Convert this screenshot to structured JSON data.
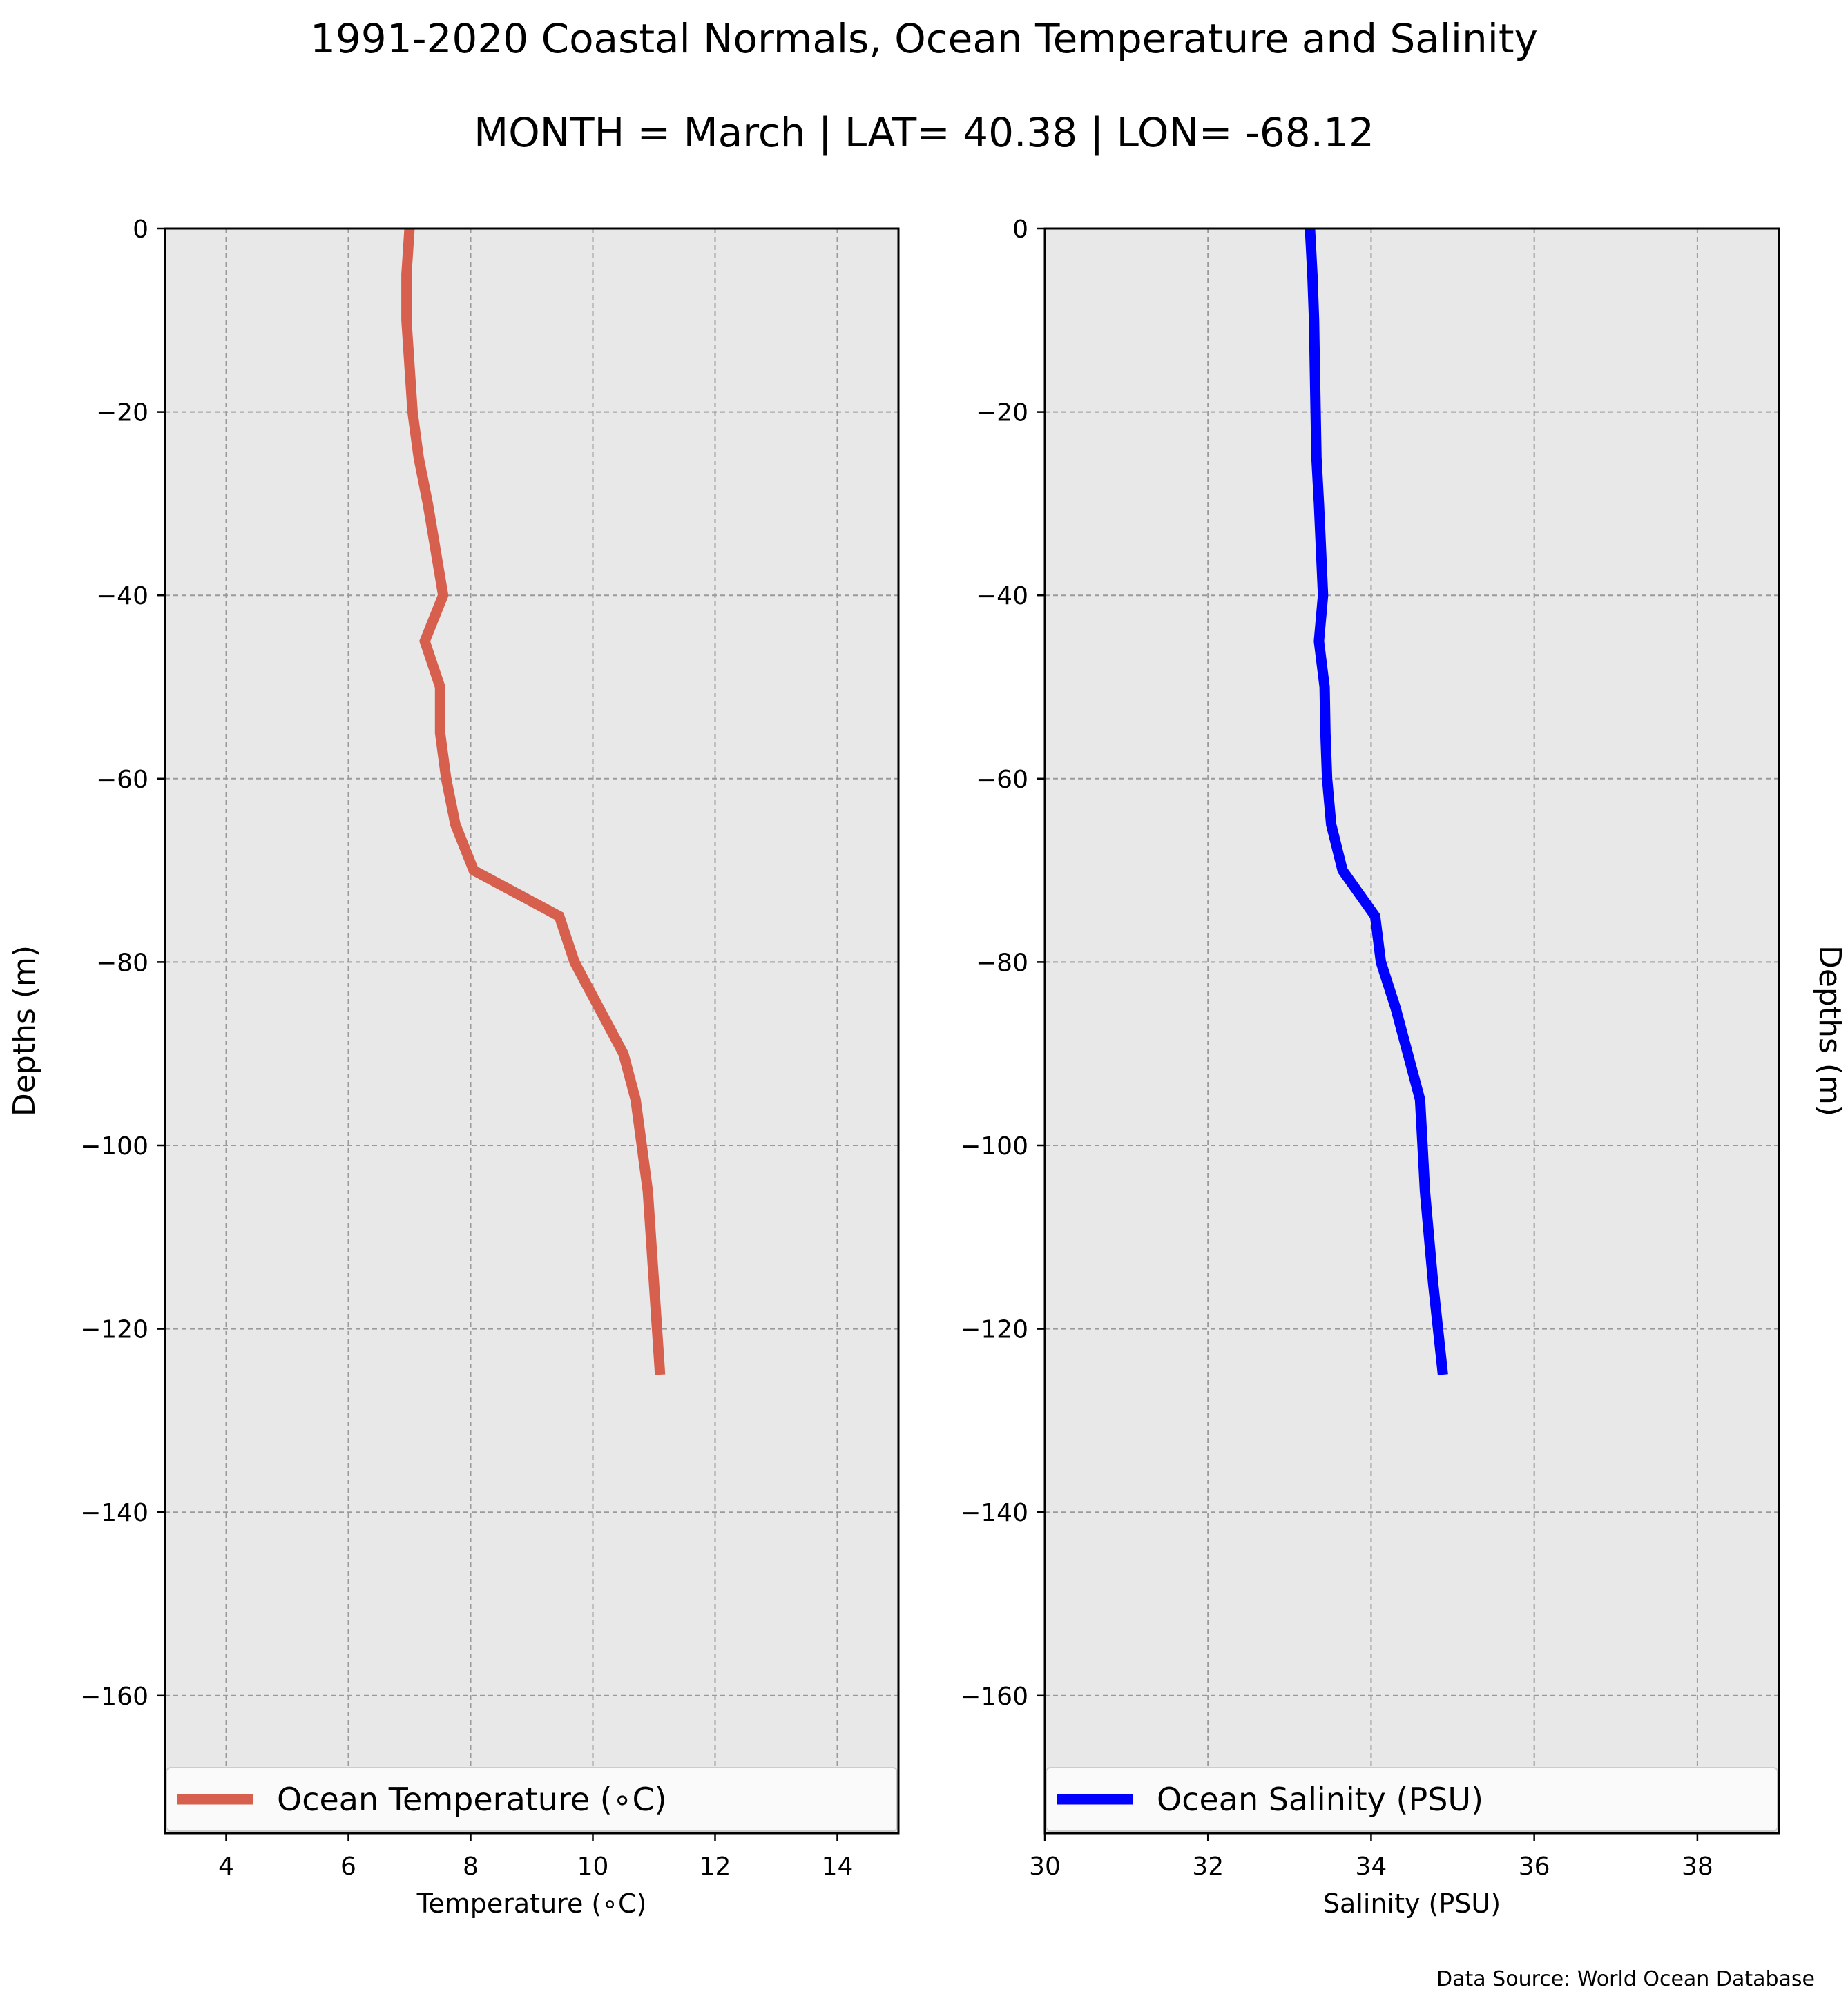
{
  "title": "1991-2020 Coastal Normals, Ocean Temperature and Salinity",
  "subtitle": "MONTH = March | LAT= 40.38 | LON= -68.12",
  "source": "Data Source: World Ocean Database",
  "chart_data": [
    {
      "type": "line",
      "orientation": "vertical-profile",
      "xlabel": "Temperature (∘C)",
      "ylabel": "Depths (m)",
      "xlim": [
        3,
        15
      ],
      "ylim": [
        -175,
        0
      ],
      "xticks": [
        4,
        6,
        8,
        10,
        12,
        14
      ],
      "yticks": [
        0,
        -20,
        -40,
        -60,
        -80,
        -100,
        -120,
        -140,
        -160
      ],
      "grid": true,
      "legend_position": "bottom",
      "color": "#d6604d",
      "series": [
        {
          "name": "Ocean Temperature (∘C)",
          "x": [
            7.0,
            6.95,
            6.95,
            7.0,
            7.05,
            7.15,
            7.3,
            7.55,
            7.25,
            7.5,
            7.5,
            7.6,
            7.75,
            8.05,
            9.45,
            9.7,
            10.1,
            10.5,
            10.7,
            10.8,
            10.9,
            11.0,
            11.1
          ],
          "y": [
            0,
            -5,
            -10,
            -15,
            -20,
            -25,
            -30,
            -40,
            -45,
            -50,
            -55,
            -60,
            -65,
            -70,
            -75,
            -80,
            -85,
            -90,
            -95,
            -100,
            -105,
            -115,
            -125
          ]
        }
      ]
    },
    {
      "type": "line",
      "orientation": "vertical-profile",
      "xlabel": "Salinity (PSU)",
      "ylabel": "Depths (m)",
      "xlim": [
        30,
        39
      ],
      "ylim": [
        -175,
        0
      ],
      "xticks": [
        30,
        32,
        34,
        36,
        38
      ],
      "yticks": [
        0,
        -20,
        -40,
        -60,
        -80,
        -100,
        -120,
        -140,
        -160
      ],
      "grid": true,
      "legend_position": "bottom",
      "color": "#0000ff",
      "series": [
        {
          "name": "Ocean Salinity (PSU)",
          "x": [
            33.25,
            33.28,
            33.3,
            33.31,
            33.32,
            33.33,
            33.36,
            33.41,
            33.36,
            33.43,
            33.44,
            33.46,
            33.51,
            33.65,
            34.05,
            34.12,
            34.3,
            34.45,
            34.6,
            34.63,
            34.66,
            34.76,
            34.88
          ],
          "y": [
            0,
            -5,
            -10,
            -15,
            -20,
            -25,
            -30,
            -40,
            -45,
            -50,
            -55,
            -60,
            -65,
            -70,
            -75,
            -80,
            -85,
            -90,
            -95,
            -100,
            -105,
            -115,
            -125
          ]
        }
      ]
    }
  ]
}
